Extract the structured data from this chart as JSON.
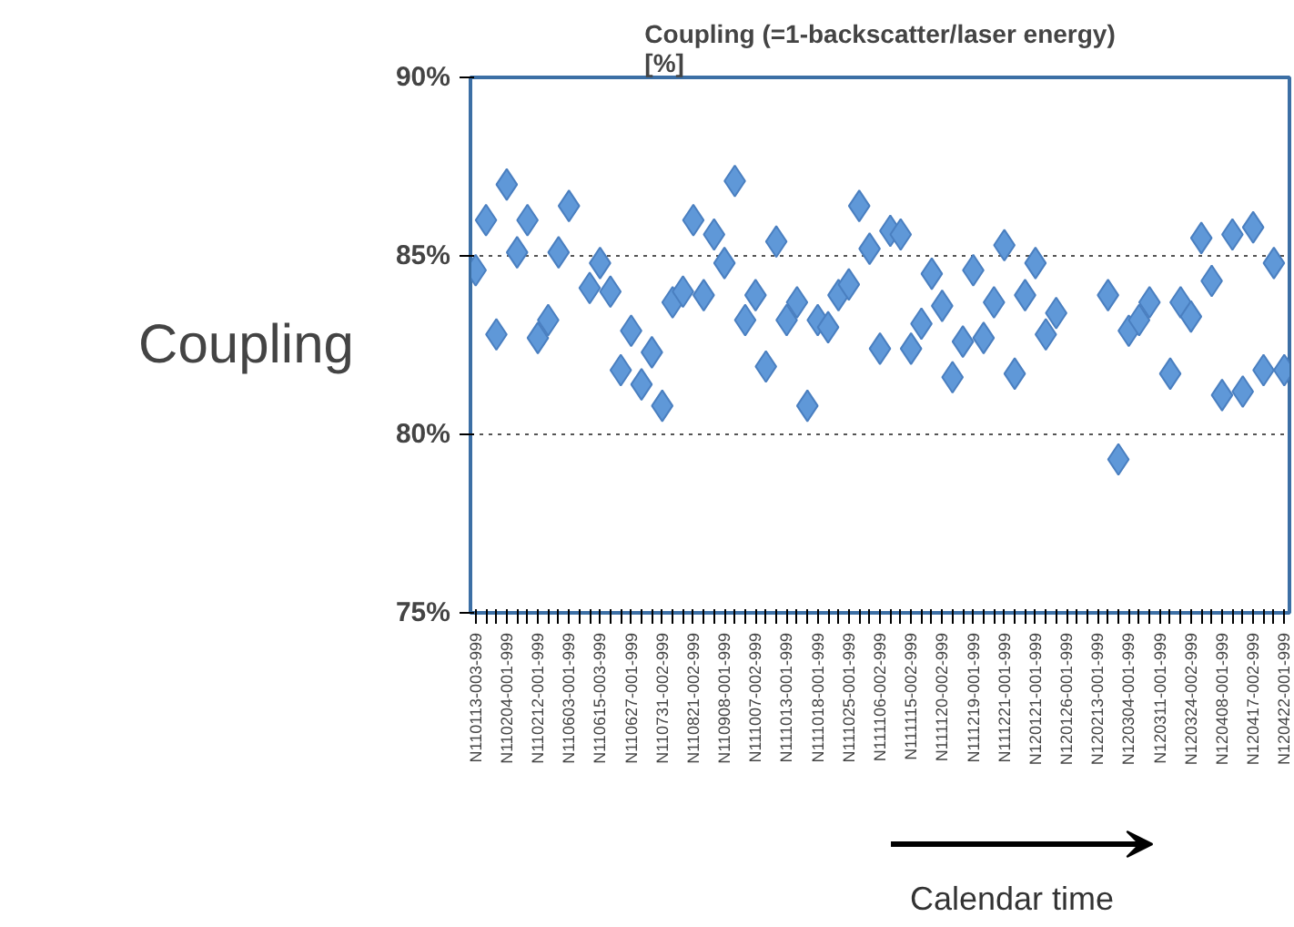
{
  "chart_data": {
    "type": "scatter",
    "title": "Coupling (=1-backscatter/laser energy)\n[%]",
    "ylabel": "Coupling",
    "categories": [
      "N110113-003-999",
      null,
      null,
      "N110204-001-999",
      null,
      null,
      "N110212-001-999",
      null,
      null,
      "N110603-001-999",
      null,
      null,
      "N110615-003-999",
      null,
      null,
      "N110627-001-999",
      null,
      null,
      "N110731-002-999",
      null,
      null,
      "N110821-002-999",
      null,
      null,
      "N110908-001-999",
      null,
      null,
      "N111007-002-999",
      null,
      null,
      "N111013-001-999",
      null,
      null,
      "N111018-001-999",
      null,
      null,
      "N111025-001-999",
      null,
      null,
      "N111106-002-999",
      null,
      null,
      "N111115-002-999",
      null,
      null,
      "N111120-002-999",
      null,
      null,
      "N111219-001-999",
      null,
      null,
      "N111221-001-999",
      null,
      null,
      "N120121-001-999",
      null,
      null,
      "N120126-001-999",
      null,
      null,
      "N120213-001-999",
      null,
      null,
      "N120304-001-999",
      null,
      null,
      "N120311-001-999",
      null,
      null,
      "N120324-002-999",
      null,
      null,
      "N120408-001-999",
      null,
      null,
      "N120417-002-999",
      null,
      null,
      "N120422-001-999"
    ],
    "series": [
      {
        "color": "#5f98d8",
        "values": [
          84.6,
          86.0,
          82.8,
          87.0,
          85.1,
          86.0,
          82.7,
          83.2,
          85.1,
          86.4,
          null,
          84.1,
          84.8,
          84.0,
          81.8,
          82.9,
          81.4,
          82.3,
          80.8,
          83.7,
          84.0,
          86.0,
          83.9,
          85.6,
          84.8,
          87.1,
          83.2,
          83.9,
          81.9,
          85.4,
          83.2,
          83.7,
          80.8,
          83.2,
          83.0,
          83.9,
          84.2,
          86.4,
          85.2,
          82.4,
          85.7,
          85.6,
          82.4,
          83.1,
          84.5,
          83.6,
          81.6,
          82.6,
          84.6,
          82.7,
          83.7,
          85.3,
          81.7,
          83.9,
          84.8,
          82.8,
          83.4,
          null,
          null,
          null,
          null,
          83.9,
          79.3,
          82.9,
          83.2,
          83.7,
          null,
          81.7,
          83.7,
          83.3,
          85.5,
          84.3,
          81.1,
          85.6,
          81.2,
          85.8,
          81.8,
          84.8,
          81.8
        ]
      }
    ],
    "ylim": [
      75,
      90
    ],
    "yticks": [
      {
        "value": 75,
        "label": "75%"
      },
      {
        "value": 80,
        "label": "80%"
      },
      {
        "value": 85,
        "label": "85%"
      },
      {
        "value": 90,
        "label": "90%"
      }
    ],
    "grid": "y",
    "marker": "diamond",
    "annotations": [
      "Calendar time"
    ]
  }
}
